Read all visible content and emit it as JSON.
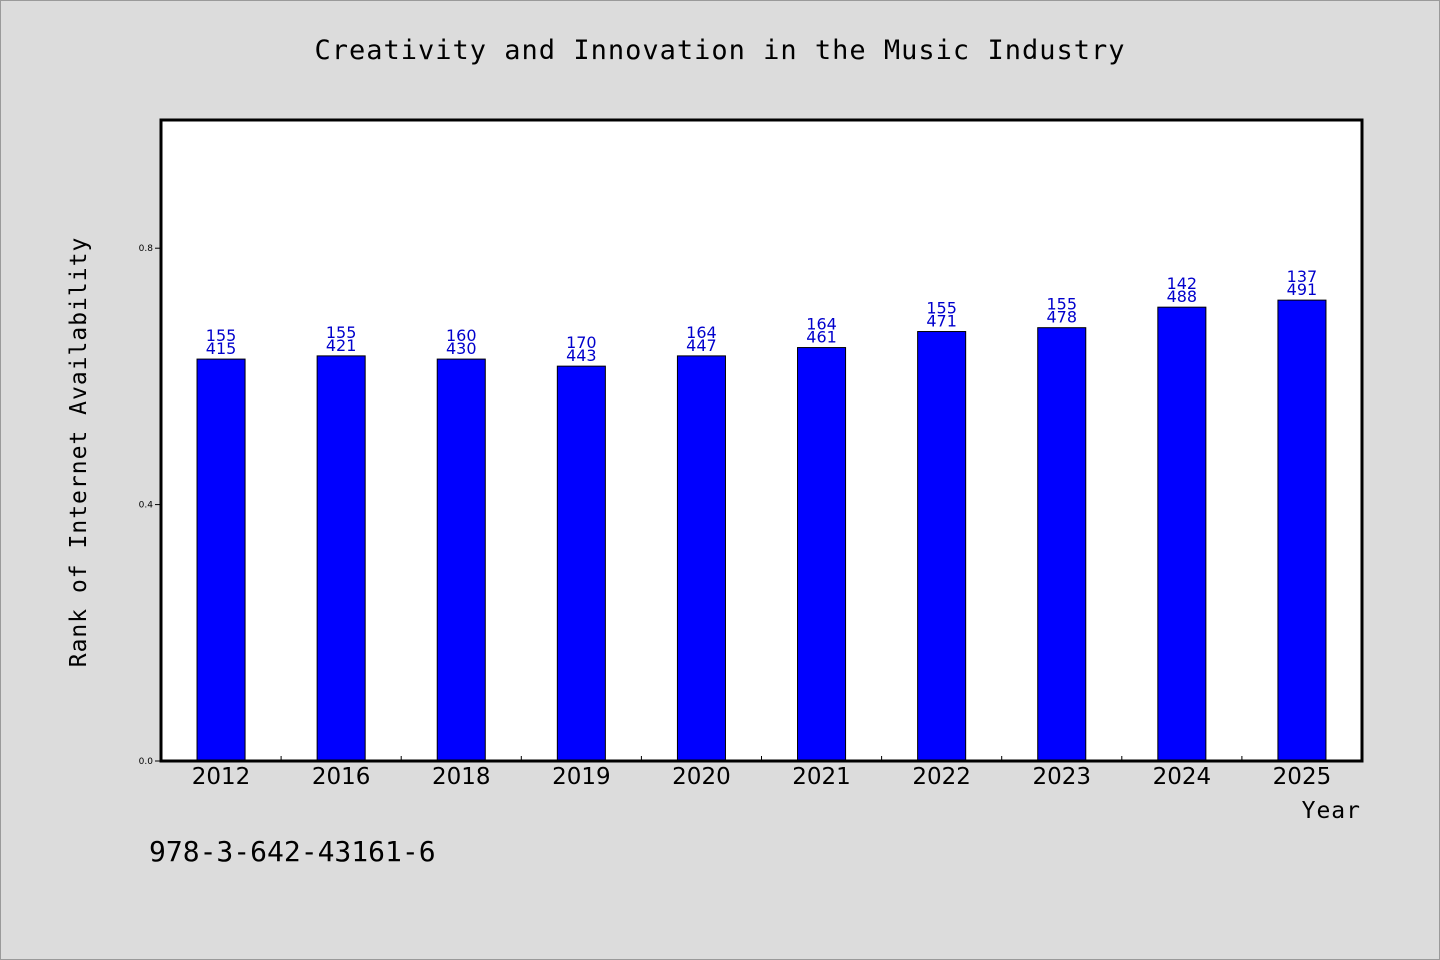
{
  "chart_data": {
    "type": "bar",
    "title": "Creativity and Innovation in the Music Industry",
    "xlabel": "Year",
    "ylabel": "Rank of Internet Availability",
    "ylim": [
      0,
      1.0
    ],
    "yticks": [
      0.0,
      0.4,
      0.8
    ],
    "ytick_labels": [
      "0.0",
      "0.4",
      "0.8"
    ],
    "grid": false,
    "categories": [
      "2012",
      "2016",
      "2018",
      "2019",
      "2020",
      "2021",
      "2022",
      "2023",
      "2024",
      "2025"
    ],
    "values": [
      0.627,
      0.632,
      0.627,
      0.616,
      0.632,
      0.645,
      0.67,
      0.676,
      0.708,
      0.719
    ],
    "annotations_top": [
      "155",
      "155",
      "160",
      "170",
      "164",
      "164",
      "155",
      "155",
      "142",
      "137"
    ],
    "annotations_bottom": [
      "415",
      "421",
      "430",
      "443",
      "447",
      "461",
      "471",
      "478",
      "488",
      "491"
    ],
    "bar_color": "#0000ff",
    "label_color": "#0000cc"
  },
  "footnote": "978-3-642-43161-6"
}
